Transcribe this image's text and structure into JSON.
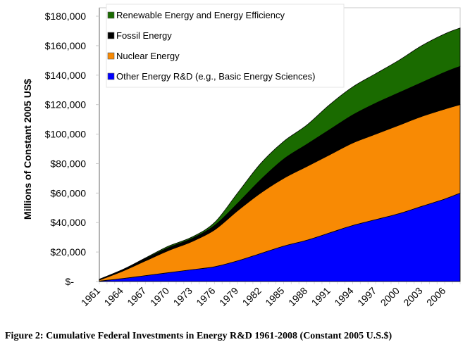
{
  "caption": "Figure 2: Cumulative Federal Investments in Energy R&D 1961-2008 (Constant 2005 U.S.$)",
  "chart_data": {
    "type": "area",
    "stacked": true,
    "title": "",
    "xlabel": "",
    "ylabel": "Millions of Constant 2005 US$",
    "x": [
      1961,
      1964,
      1967,
      1970,
      1973,
      1976,
      1979,
      1982,
      1985,
      1988,
      1991,
      1994,
      1997,
      2000,
      2003,
      2006,
      2008
    ],
    "xlim": [
      1961,
      2008
    ],
    "ylim": [
      0,
      180000
    ],
    "x_tick_labels": [
      "1961",
      "1964",
      "1967",
      "1970",
      "1973",
      "1976",
      "1979",
      "1982",
      "1985",
      "1988",
      "1991",
      "1994",
      "1997",
      "2000",
      "2003",
      "2006"
    ],
    "y_ticks": [
      0,
      20000,
      40000,
      60000,
      80000,
      100000,
      120000,
      140000,
      160000,
      180000
    ],
    "y_tick_labels": [
      "$-",
      "$20,000",
      "$40,000",
      "$60,000",
      "$80,000",
      "$100,000",
      "$120,000",
      "$140,000",
      "$160,000",
      "$180,000"
    ],
    "grid": false,
    "legend_position": "top-left",
    "series": [
      {
        "name": "Other Energy R&D (e.g., Basic Energy Sciences)",
        "color": "#0000ff",
        "values": [
          300,
          2000,
          4000,
          6000,
          8000,
          10000,
          14000,
          19000,
          24000,
          28000,
          33000,
          38000,
          42000,
          46000,
          51000,
          56000,
          60000
        ]
      },
      {
        "name": "Nuclear Energy",
        "color": "#f88a04",
        "values": [
          700,
          5000,
          10000,
          15000,
          19000,
          25000,
          34000,
          41000,
          46000,
          50000,
          53000,
          56000,
          58000,
          60000,
          61000,
          61000,
          60000
        ]
      },
      {
        "name": "Fossil Energy",
        "color": "#000000",
        "values": [
          500,
          1000,
          1500,
          2000,
          2000,
          3000,
          5000,
          9000,
          13000,
          15000,
          17000,
          19000,
          21000,
          22000,
          23000,
          25000,
          26000
        ]
      },
      {
        "name": "Renewable Energy and Energy Efficiency",
        "color": "#1a6b00",
        "values": [
          0,
          0,
          500,
          1000,
          1000,
          2000,
          7000,
          11000,
          12000,
          13000,
          17000,
          19000,
          20000,
          22000,
          25000,
          26000,
          26000
        ]
      }
    ],
    "legend_order": [
      3,
      2,
      1,
      0
    ]
  }
}
